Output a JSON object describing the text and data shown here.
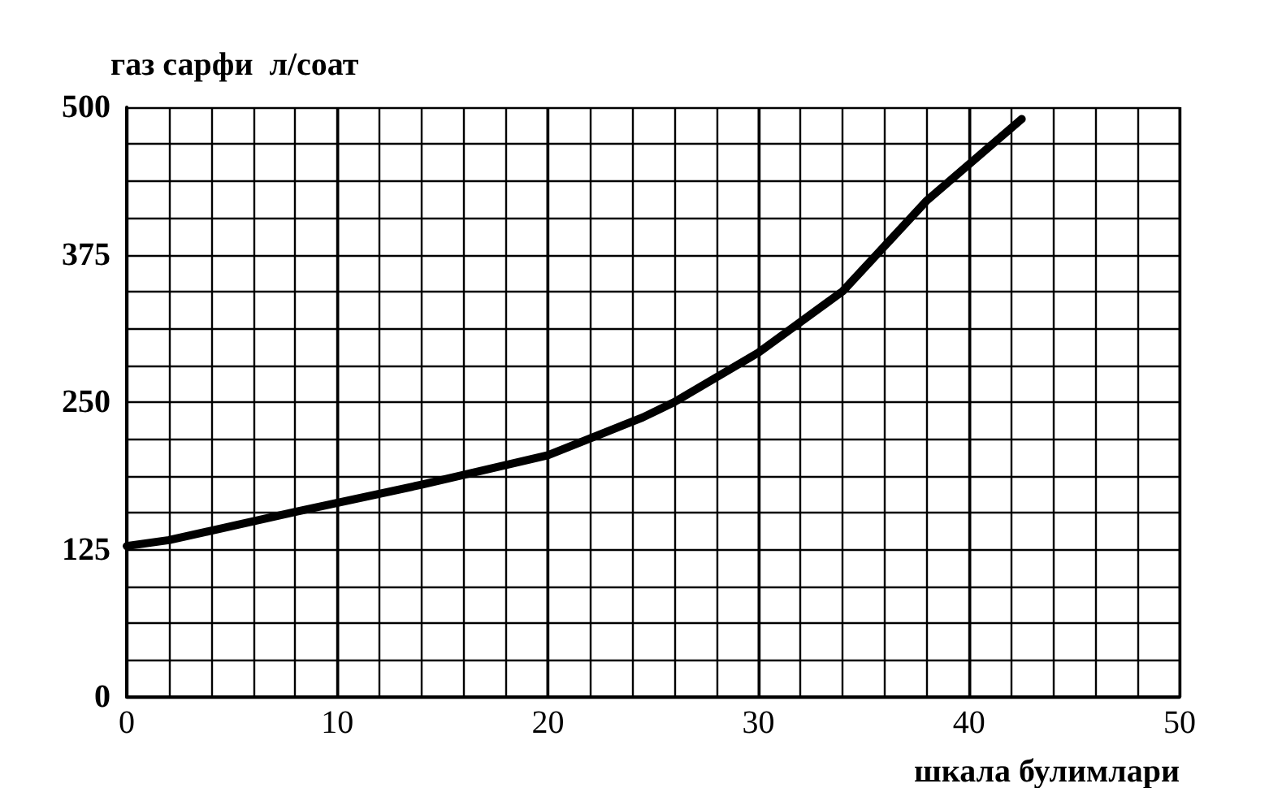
{
  "chart_data": {
    "type": "line",
    "ylabel": "газ сарфи  л/соат",
    "xlabel": "шкала булимлари",
    "x": [
      0,
      2,
      8,
      14,
      20,
      24.5,
      26,
      30,
      34,
      38,
      42.5
    ],
    "series": [
      {
        "color": "#000000",
        "values": [
          128,
          133,
          157,
          180,
          205,
          237,
          250,
          292,
          344,
          421,
          490
        ]
      }
    ],
    "xlim": [
      0,
      50
    ],
    "xticks": [
      0,
      10,
      20,
      30,
      40,
      50
    ],
    "ylim": [
      0,
      500
    ],
    "yticks": [
      0,
      125,
      250,
      375,
      500
    ],
    "grid": true,
    "marker": "none",
    "line_style": "solid"
  }
}
